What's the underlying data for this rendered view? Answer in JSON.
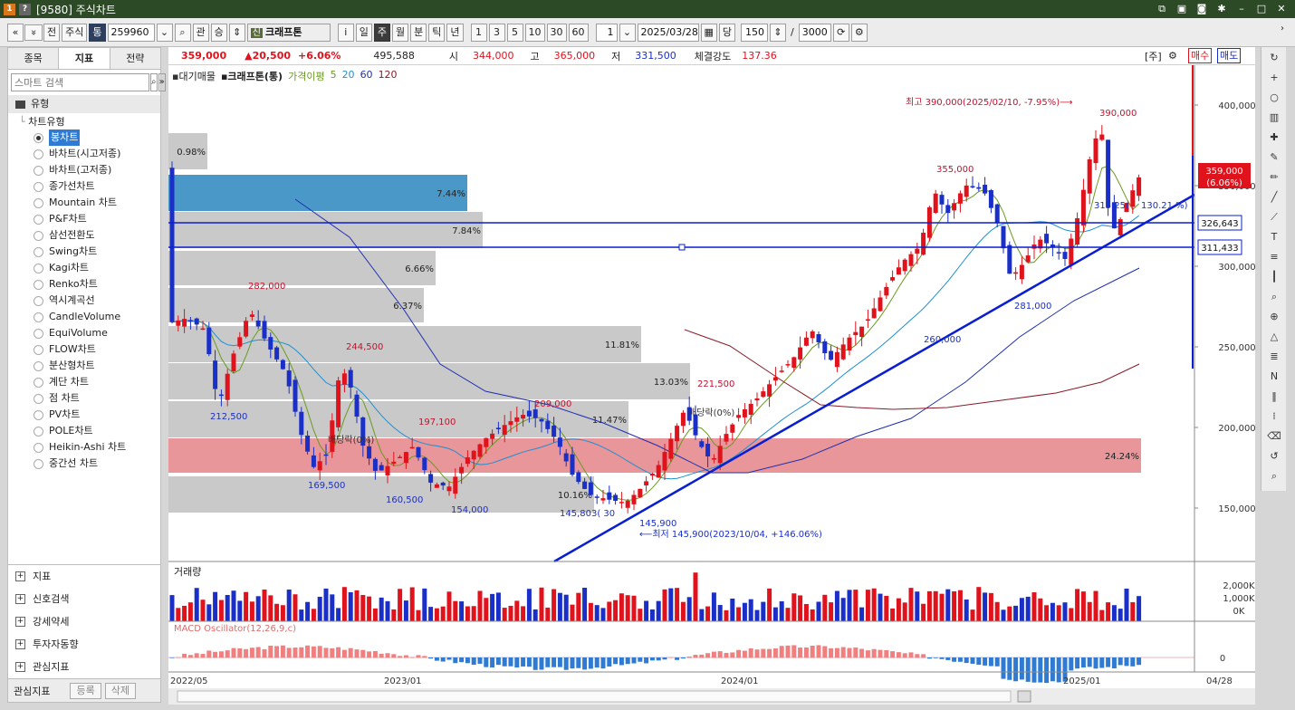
{
  "window": {
    "title": "[9580] 주식차트",
    "icon_label": "1",
    "help_label": "?"
  },
  "toolbar": {
    "prev": "«",
    "down": "»",
    "jeon": "전",
    "jusik": "주식",
    "tong": "통",
    "code": "259960",
    "gwan": "관",
    "seung": "승",
    "sin": "신",
    "stock_name": "크래프톤",
    "info": "i",
    "periods": [
      "일",
      "주",
      "월",
      "분",
      "틱",
      "년"
    ],
    "active_period": "주",
    "nums": [
      "1",
      "3",
      "5",
      "10",
      "30",
      "60"
    ],
    "count_sel": "1",
    "date": "2025/03/28",
    "dang": "당",
    "bars": "150",
    "slash": "/",
    "total": "3000"
  },
  "left_panel": {
    "tabs": [
      "종목",
      "지표",
      "전략"
    ],
    "active_tab": "지표",
    "search_placeholder": "스마트 검색",
    "section": "유형",
    "subsection": "차트유형",
    "chart_types": [
      "봉차트",
      "바차트(시고저종)",
      "바차트(고저종)",
      "종가선차트",
      "Mountain 차트",
      "P&F차트",
      "삼선전환도",
      "Swing차트",
      "Kagi차트",
      "Renko차트",
      "역시계곡선",
      "CandleVolume",
      "EquiVolume",
      "FLOW차트",
      "분산형차트",
      "계단 차트",
      "점 차트",
      "PV차트",
      "POLE차트",
      "Heikin-Ashi 차트",
      "중간선 차트"
    ],
    "selected_type": "봉차트",
    "groups": [
      "지표",
      "신호검색",
      "강세약세",
      "투자자동향",
      "관심지표"
    ],
    "bottom_label": "관심지표",
    "btn_register": "등록",
    "btn_delete": "삭제"
  },
  "price_bar": {
    "price": "359,000",
    "change": "▲20,500",
    "pct": "+6.06%",
    "volume": "495,588",
    "open_label": "시",
    "open": "344,000",
    "high_label": "고",
    "high": "365,000",
    "low_label": "저",
    "low": "331,500",
    "strength_label": "체결강도",
    "strength": "137.36",
    "ju_label": "[주]",
    "buy": "매수",
    "sell": "매도"
  },
  "legend": {
    "profile": "대기매물",
    "name": "크래프톤(통)",
    "ma_label": "가격이평",
    "ma": [
      "5",
      "20",
      "60",
      "120"
    ],
    "ma_colors": [
      "#6a9a1f",
      "#1f8fd0",
      "#1f2fb0",
      "#8b1a2a"
    ]
  },
  "chart_data": {
    "type": "candlestick",
    "y_ticks": [
      "400,000",
      "350,000",
      "300,000",
      "250,000",
      "200,000",
      "150,000"
    ],
    "x_labels": [
      "2022/05",
      "2023/01",
      "2024/01",
      "2025/01"
    ],
    "last_x_label": "04/28",
    "current_price_label": "359,000",
    "current_pct_label": "(6.06%)",
    "line_labels": [
      "326,643",
      "311,433"
    ],
    "annotations": {
      "high": "최고 390,000(2025/02/10, -7.95%)⟶",
      "low": "⟵최저 145,900(2023/10/04, +146.06%)",
      "p390": "390,000",
      "p355": "355,000",
      "p282": "282,000",
      "p244": "244,500",
      "p221": "221,500",
      "p209": "209,000",
      "p197": "197,100",
      "p212": "212,500",
      "p169": "169,500",
      "p160": "160,500",
      "p154": "154,000",
      "p145": "145,900",
      "p145803": "145,803(  30",
      "p281": "281,000",
      "p260": "260,000",
      "div1": "배당락(0%)",
      "div2": "배당락(0%)",
      "mid1": "315.25(",
      "mid2": "130.21 %)"
    },
    "profile_pcts": [
      "0.98%",
      "7.44%",
      "7.84%",
      "6.66%",
      "6.37%",
      "11.81%",
      "13.03%",
      "11.47%",
      "24.24%",
      "10.16%"
    ],
    "volume_title": "거래량",
    "volume_ticks": [
      "2,000K",
      "1,000K",
      "0K"
    ],
    "macd_title": "MACD Oscillator(12,26,9,c)",
    "macd_tick": "0"
  },
  "colors": {
    "up": "#e0121b",
    "down": "#1a2fc8",
    "titlebar": "#2c4a25",
    "trend": "#0a1fd0"
  }
}
